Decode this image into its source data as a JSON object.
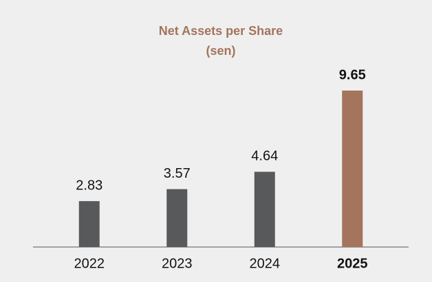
{
  "chart_data": {
    "type": "bar",
    "title": "Net Assets per Share",
    "subtitle": "(sen)",
    "categories": [
      "2022",
      "2023",
      "2024",
      "2025"
    ],
    "values": [
      2.83,
      3.57,
      4.64,
      9.65
    ],
    "colors": [
      "#58595b",
      "#58595b",
      "#58595b",
      "#a4745c"
    ],
    "highlight": 3
  }
}
